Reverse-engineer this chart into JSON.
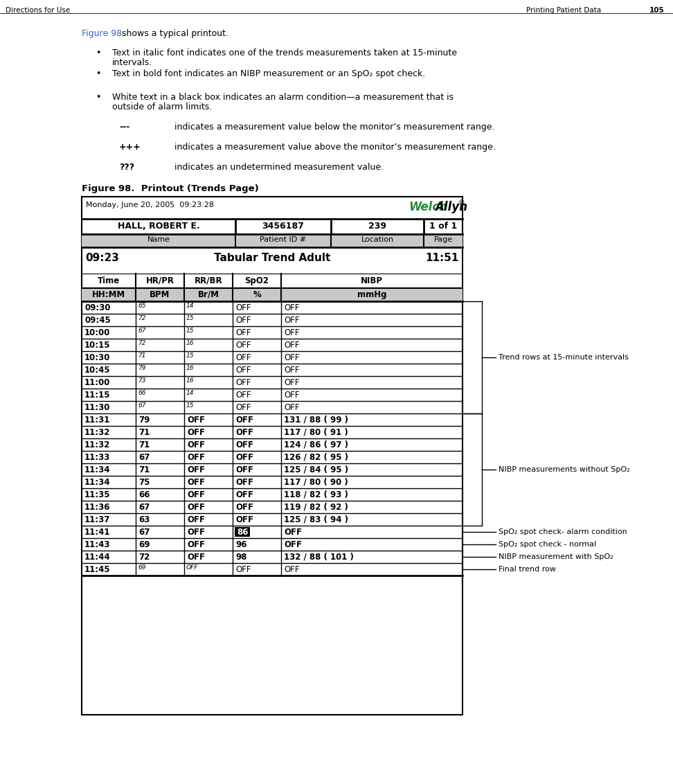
{
  "page_header_left": "Directions for Use",
  "page_header_right": "Printing Patient Data",
  "page_number": "105",
  "figure_label": "Figure 98",
  "figure_label_color": "#3366cc",
  "intro_text": " shows a typical printout.",
  "bullets": [
    "Text in italic font indicates one of the trends measurements taken at 15-minute\nintervals.",
    "Text in bold font indicates an NIBP measurement or an SpO₂ spot check.",
    "White text in a black box indicates an alarm condition—a measurement that is\noutside of alarm limits."
  ],
  "dashes_items": [
    [
      "---",
      "indicates a measurement value below the monitor’s measurement range."
    ],
    [
      "+++",
      "indicates a measurement value above the monitor’s measurement range."
    ],
    [
      "???",
      "indicates an undetermined measurement value."
    ]
  ],
  "figure_caption": "Figure 98.  Printout (Trends Page)",
  "table_date": "Monday, June 20, 2005  09:23:28",
  "patient_name": "HALL, ROBERT E.",
  "patient_id": "3456187",
  "patient_location": "239",
  "patient_page": "1 of 1",
  "label_name": "Name",
  "label_id": "Patient ID #",
  "label_location": "Location",
  "label_page": "Page",
  "time_start": "09:23",
  "time_end": "11:51",
  "title_center": "Tabular Trend Adult",
  "col_headers": [
    "Time",
    "HR/PR",
    "RR/BR",
    "SpO2",
    "NIBP"
  ],
  "col_units": [
    "HH:MM",
    "BPM",
    "Br/M",
    "%",
    "mmHg"
  ],
  "data_rows": [
    {
      "time": "09:30",
      "hr": "65",
      "rr": "14",
      "spo2": "OFF",
      "nibp": "OFF",
      "style": "italic"
    },
    {
      "time": "09:45",
      "hr": "72",
      "rr": "15",
      "spo2": "OFF",
      "nibp": "OFF",
      "style": "italic"
    },
    {
      "time": "10:00",
      "hr": "67",
      "rr": "15",
      "spo2": "OFF",
      "nibp": "OFF",
      "style": "italic"
    },
    {
      "time": "10:15",
      "hr": "72",
      "rr": "16",
      "spo2": "OFF",
      "nibp": "OFF",
      "style": "italic"
    },
    {
      "time": "10:30",
      "hr": "71",
      "rr": "15",
      "spo2": "OFF",
      "nibp": "OFF",
      "style": "italic"
    },
    {
      "time": "10:45",
      "hr": "79",
      "rr": "16",
      "spo2": "OFF",
      "nibp": "OFF",
      "style": "italic"
    },
    {
      "time": "11:00",
      "hr": "73",
      "rr": "16",
      "spo2": "OFF",
      "nibp": "OFF",
      "style": "italic"
    },
    {
      "time": "11:15",
      "hr": "66",
      "rr": "14",
      "spo2": "OFF",
      "nibp": "OFF",
      "style": "italic"
    },
    {
      "time": "11:30",
      "hr": "67",
      "rr": "15",
      "spo2": "OFF",
      "nibp": "OFF",
      "style": "italic"
    },
    {
      "time": "11:31",
      "hr": "79",
      "rr": "OFF",
      "spo2": "OFF",
      "nibp": "131 / 88 ( 99 )",
      "style": "bold"
    },
    {
      "time": "11:32",
      "hr": "71",
      "rr": "OFF",
      "spo2": "OFF",
      "nibp": "117 / 80 ( 91 )",
      "style": "bold"
    },
    {
      "time": "11:32",
      "hr": "71",
      "rr": "OFF",
      "spo2": "OFF",
      "nibp": "124 / 86 ( 97 )",
      "style": "bold"
    },
    {
      "time": "11:33",
      "hr": "67",
      "rr": "OFF",
      "spo2": "OFF",
      "nibp": "126 / 82 ( 95 )",
      "style": "bold"
    },
    {
      "time": "11:34",
      "hr": "71",
      "rr": "OFF",
      "spo2": "OFF",
      "nibp": "125 / 84 ( 95 )",
      "style": "bold"
    },
    {
      "time": "11:34",
      "hr": "75",
      "rr": "OFF",
      "spo2": "OFF",
      "nibp": "117 / 80 ( 90 )",
      "style": "bold"
    },
    {
      "time": "11:35",
      "hr": "66",
      "rr": "OFF",
      "spo2": "OFF",
      "nibp": "118 / 82 ( 93 )",
      "style": "bold"
    },
    {
      "time": "11:36",
      "hr": "67",
      "rr": "OFF",
      "spo2": "OFF",
      "nibp": "119 / 82 ( 92 )",
      "style": "bold"
    },
    {
      "time": "11:37",
      "hr": "63",
      "rr": "OFF",
      "spo2": "OFF",
      "nibp": "125 / 83 ( 94 )",
      "style": "bold"
    },
    {
      "time": "11:41",
      "hr": "67",
      "rr": "OFF",
      "spo2": "86",
      "nibp": "OFF",
      "style": "bold",
      "spo2_alarm": true
    },
    {
      "time": "11:43",
      "hr": "69",
      "rr": "OFF",
      "spo2": "96",
      "nibp": "OFF",
      "style": "bold"
    },
    {
      "time": "11:44",
      "hr": "72",
      "rr": "OFF",
      "spo2": "98",
      "nibp": "132 / 88 ( 101 )",
      "style": "bold"
    },
    {
      "time": "11:45",
      "hr": "69",
      "rr": "OFF",
      "spo2": "OFF",
      "nibp": "OFF",
      "style": "italic_final"
    }
  ],
  "annotations": [
    "Trend rows at 15-minute intervals",
    "NIBP measurements without SpO₂",
    "SpO₂ spot check- alarm condition",
    "SpO₂ spot check - normal",
    "NIBP measurement with SpO₂",
    "Final trend row"
  ],
  "welch_green": "#2a8a3e",
  "header_bg": "#c8c8c8",
  "bg_white": "#ffffff"
}
